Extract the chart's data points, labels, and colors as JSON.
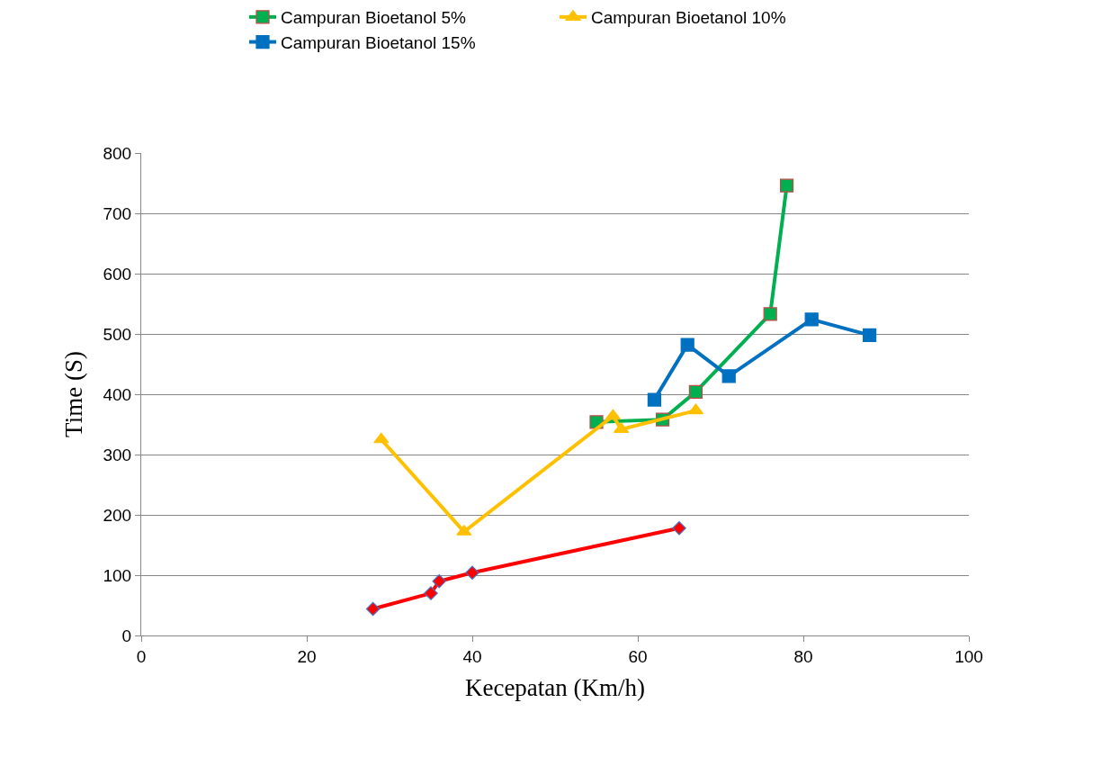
{
  "chart_data": {
    "type": "line",
    "xlabel": "Kecepatan (Km/h)",
    "ylabel": "Time (S)",
    "xlim": [
      0,
      100
    ],
    "xticks": [
      0,
      20,
      40,
      60,
      80,
      100
    ],
    "ylim": [
      0,
      800
    ],
    "yticks": [
      0,
      100,
      200,
      300,
      400,
      500,
      600,
      700,
      800
    ],
    "grid": "y",
    "legend": "top",
    "line_style": "solid",
    "series": [
      {
        "color": "#ff0000",
        "marker": "diamond",
        "x": [
          28,
          35,
          36,
          40,
          65
        ],
        "values": [
          44,
          70,
          90,
          104,
          178
        ]
      },
      {
        "name": "Campuran Bioetanol 5%",
        "color": "#00b050",
        "marker": "square",
        "x": [
          55,
          63,
          67,
          76,
          78
        ],
        "values": [
          354,
          358,
          404,
          533,
          746
        ]
      },
      {
        "name": "Campuran Bioetanol 10%",
        "color": "#ffc000",
        "marker": "triangle",
        "x": [
          29,
          39,
          57,
          58,
          67
        ],
        "values": [
          325,
          172,
          364,
          342,
          373
        ]
      },
      {
        "name": "Campuran Bioetanol 15%",
        "color": "#0070c0",
        "marker": "square",
        "x": [
          62,
          66,
          71,
          81,
          88
        ],
        "values": [
          391,
          482,
          430,
          524,
          498
        ]
      }
    ]
  }
}
